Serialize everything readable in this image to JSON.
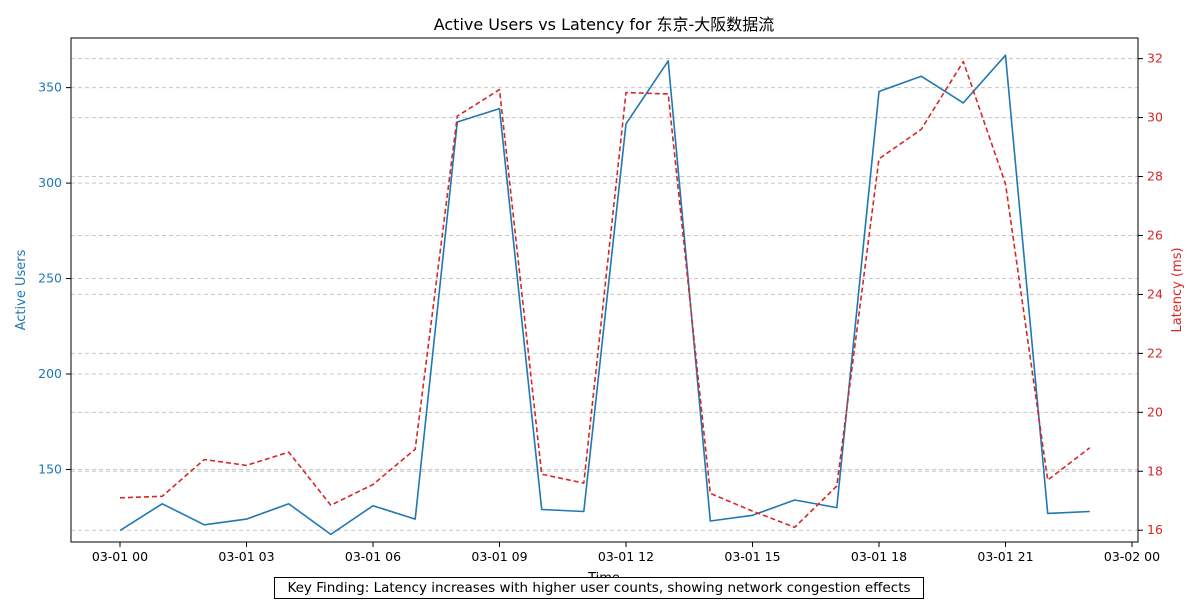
{
  "chart_data": {
    "type": "line",
    "title": "Active Users vs Latency for 东京-大阪数据流",
    "xlabel": "Time",
    "ylabel_left": "Active Users",
    "ylabel_right": "Latency (ms)",
    "x": [
      "03-01 00",
      "03-01 01",
      "03-01 02",
      "03-01 03",
      "03-01 04",
      "03-01 05",
      "03-01 06",
      "03-01 07",
      "03-01 08",
      "03-01 09",
      "03-01 10",
      "03-01 11",
      "03-01 12",
      "03-01 13",
      "03-01 14",
      "03-01 15",
      "03-01 16",
      "03-01 17",
      "03-01 18",
      "03-01 19",
      "03-01 20",
      "03-01 21",
      "03-01 22",
      "03-01 23"
    ],
    "x_ticks": [
      "03-01 00",
      "03-01 03",
      "03-01 06",
      "03-01 09",
      "03-01 12",
      "03-01 15",
      "03-01 18",
      "03-01 21",
      "03-02 00"
    ],
    "ylim_left": [
      112,
      376
    ],
    "yticks_left": [
      150,
      200,
      250,
      300,
      350
    ],
    "ylim_right": [
      15.6,
      32.7
    ],
    "yticks_right": [
      16,
      18,
      20,
      22,
      24,
      26,
      28,
      30,
      32
    ],
    "series": [
      {
        "axis": "left",
        "color": "#1f77b4",
        "style": "solid",
        "values": [
          118,
          132,
          121,
          124,
          132,
          116,
          131,
          124,
          332,
          339,
          129,
          128,
          331,
          364,
          123,
          126,
          134,
          130,
          348,
          356,
          342,
          367,
          127,
          128
        ]
      },
      {
        "axis": "right",
        "color": "#d62728",
        "style": "dashed",
        "values": [
          17.1,
          17.15,
          18.4,
          18.2,
          18.65,
          16.85,
          17.55,
          18.75,
          30.05,
          30.95,
          17.9,
          17.6,
          30.85,
          30.8,
          17.25,
          16.65,
          16.1,
          17.5,
          28.6,
          29.6,
          31.9,
          27.75,
          17.7,
          18.8
        ]
      }
    ],
    "grid": "horizontal dashed",
    "annotation": "Key Finding: Latency increases with higher user counts, showing network congestion effects"
  }
}
